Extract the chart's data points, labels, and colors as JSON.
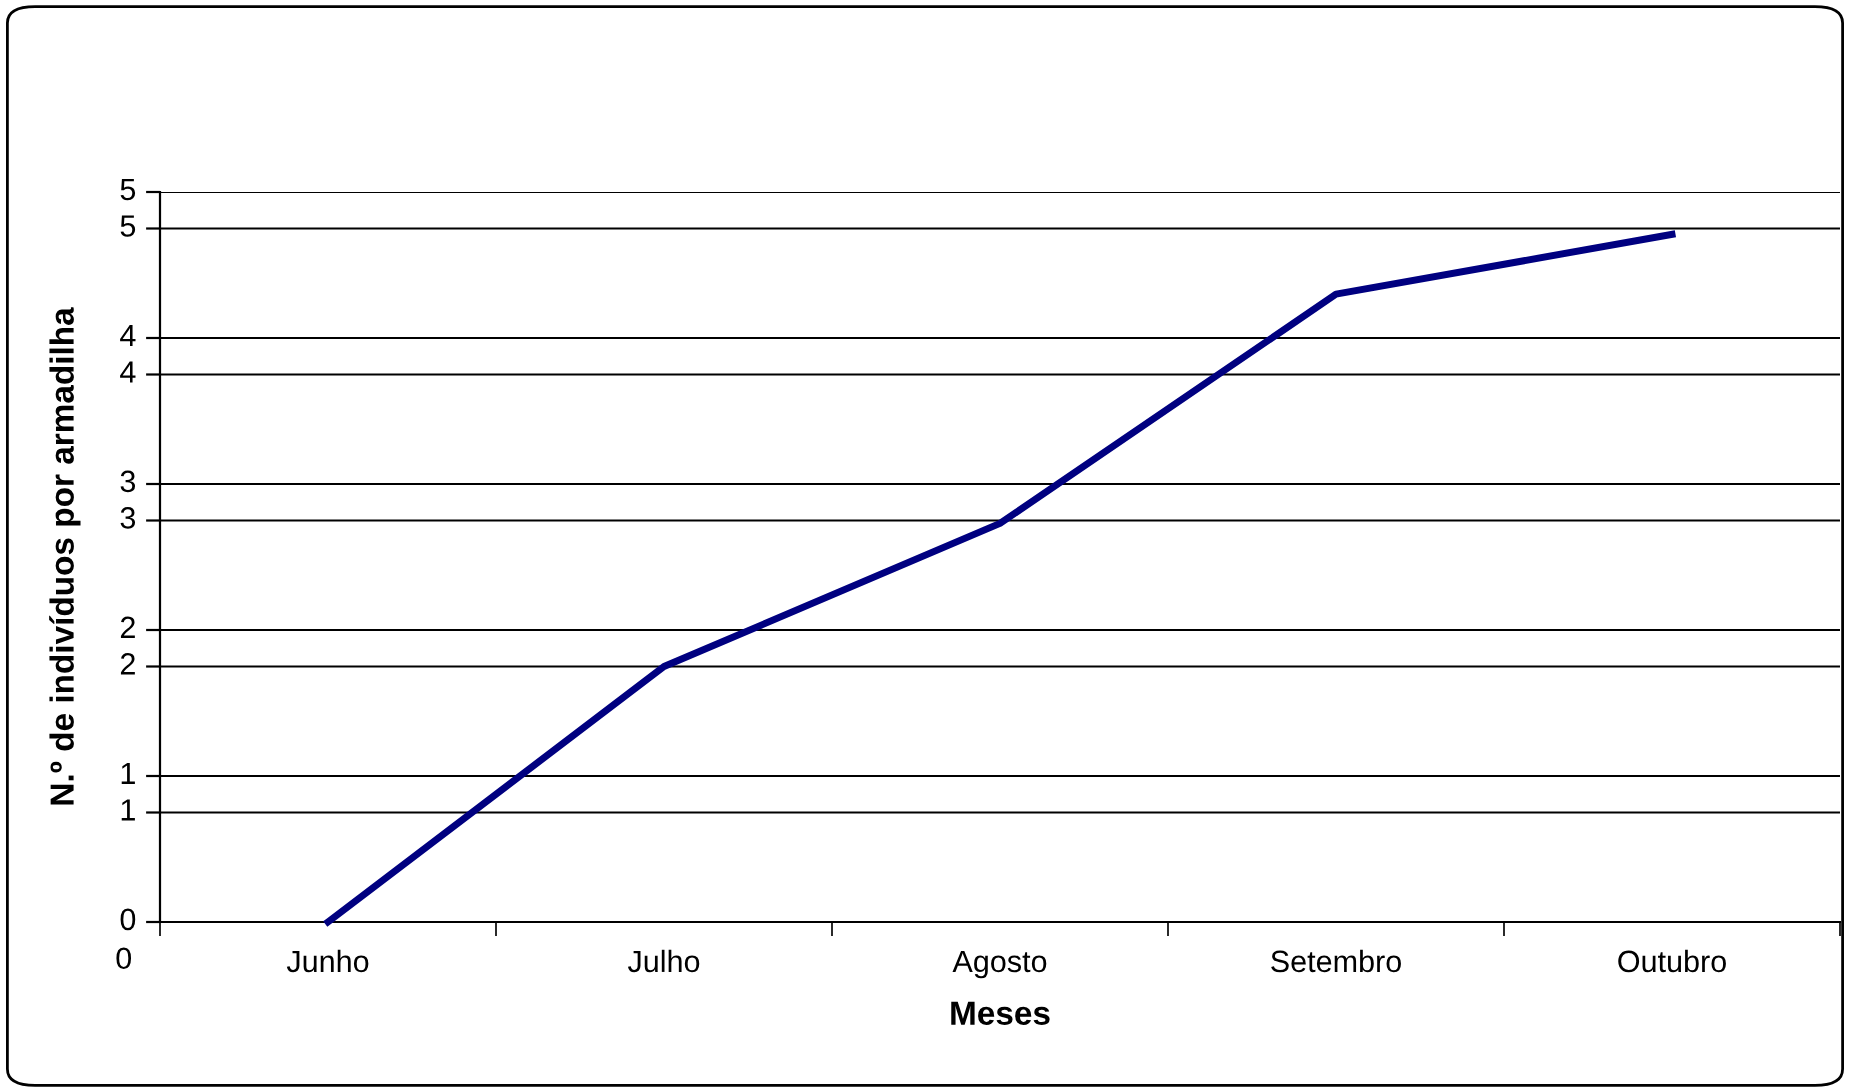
{
  "chart_data": {
    "type": "line",
    "xlabel": "Meses",
    "ylabel": "N.º de indivíduos por armadilha",
    "categories": [
      "Junho",
      "Julho",
      "Agosto",
      "Setembro",
      "Outubro"
    ],
    "series": [
      {
        "color": "#000080",
        "values": [
          0,
          1.75,
          2.73,
          4.3,
          4.71
        ]
      }
    ],
    "ylim": [
      0,
      5
    ],
    "yticks": [
      0,
      {
        "value": 0.75,
        "label": "1"
      },
      1,
      {
        "value": 1.75,
        "label": "2"
      },
      2,
      {
        "value": 2.75,
        "label": "3"
      },
      3,
      {
        "value": 3.75,
        "label": "4"
      },
      4,
      {
        "value": 4.75,
        "label": "5"
      },
      5
    ],
    "annotations": [
      "0"
    ],
    "grid": "y",
    "legend": false,
    "marker": "none",
    "line_style": "solid"
  }
}
